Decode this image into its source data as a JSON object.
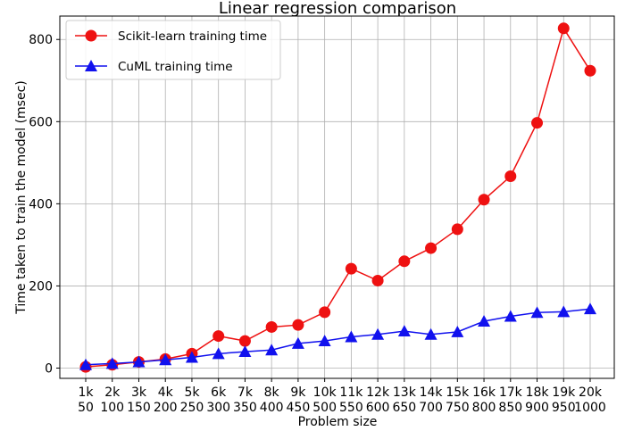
{
  "chart_data": {
    "type": "line",
    "title": "Linear regression comparison",
    "xlabel": "Problem size",
    "ylabel": "Time taken to train the model (msec)",
    "categories": [
      {
        "top": "1k",
        "bottom": "50"
      },
      {
        "top": "2k",
        "bottom": "100"
      },
      {
        "top": "3k",
        "bottom": "150"
      },
      {
        "top": "4k",
        "bottom": "200"
      },
      {
        "top": "5k",
        "bottom": "250"
      },
      {
        "top": "6k",
        "bottom": "300"
      },
      {
        "top": "7k",
        "bottom": "350"
      },
      {
        "top": "8k",
        "bottom": "400"
      },
      {
        "top": "9k",
        "bottom": "450"
      },
      {
        "top": "10k",
        "bottom": "500"
      },
      {
        "top": "11k",
        "bottom": "550"
      },
      {
        "top": "12k",
        "bottom": "600"
      },
      {
        "top": "13k",
        "bottom": "650"
      },
      {
        "top": "14k",
        "bottom": "700"
      },
      {
        "top": "15k",
        "bottom": "750"
      },
      {
        "top": "16k",
        "bottom": "800"
      },
      {
        "top": "17k",
        "bottom": "850"
      },
      {
        "top": "18k",
        "bottom": "900"
      },
      {
        "top": "19k",
        "bottom": "950"
      },
      {
        "top": "20k",
        "bottom": "1000"
      }
    ],
    "series": [
      {
        "name": "Scikit-learn training time",
        "color": "#ee1111",
        "marker": "circle",
        "values": [
          3,
          8,
          15,
          22,
          35,
          78,
          66,
          100,
          105,
          136,
          242,
          213,
          260,
          292,
          338,
          410,
          467,
          597,
          827,
          724
        ]
      },
      {
        "name": "CuML training time",
        "color": "#1111ee",
        "marker": "triangle",
        "values": [
          8,
          11,
          15,
          20,
          26,
          35,
          40,
          44,
          60,
          66,
          76,
          82,
          90,
          82,
          88,
          114,
          126,
          135,
          137,
          144
        ]
      }
    ],
    "ylim": [
      -25,
      857
    ],
    "yticks": [
      0,
      200,
      400,
      600,
      800
    ],
    "grid": true,
    "legend_position": "upper-left"
  }
}
